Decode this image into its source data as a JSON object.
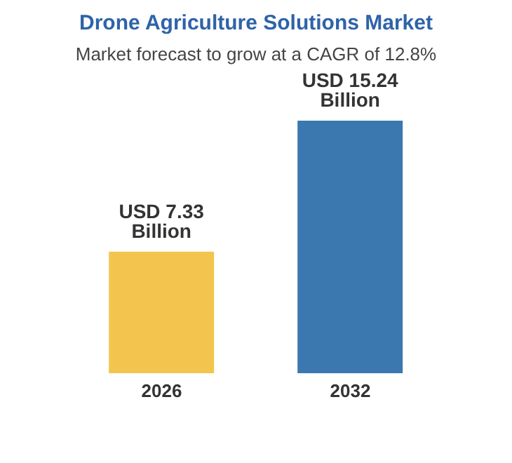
{
  "chart_data": {
    "type": "bar",
    "title": "Drone Agriculture Solutions Market",
    "subtitle": "Market forecast to grow at a CAGR of 12.8%",
    "categories": [
      "2026",
      "2032"
    ],
    "values": [
      7.33,
      15.24
    ],
    "colors": [
      "#f3c54e",
      "#3b78b0"
    ],
    "value_labels": [
      "USD 7.33 Billion",
      "USD 15.24 Billion"
    ]
  }
}
